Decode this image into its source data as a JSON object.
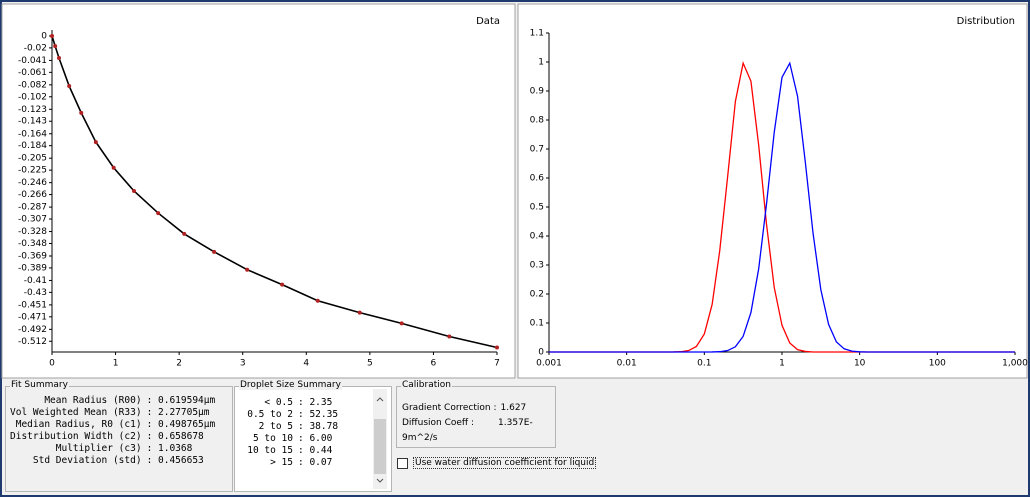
{
  "chart_data": [
    {
      "type": "scatter",
      "title": "Data",
      "x": [
        0,
        0.05,
        0.11,
        0.27,
        0.46,
        0.69,
        0.97,
        1.29,
        1.67,
        2.08,
        2.55,
        3.07,
        3.62,
        4.18,
        4.84,
        5.5,
        6.25,
        7.0
      ],
      "series": [
        {
          "color": "#000000",
          "marker_color": "#b22222",
          "values": [
            0,
            -0.017,
            -0.037,
            -0.084,
            -0.129,
            -0.178,
            -0.221,
            -0.26,
            -0.297,
            -0.332,
            -0.362,
            -0.392,
            -0.417,
            -0.444,
            -0.464,
            -0.482,
            -0.504,
            -0.5225
          ]
        }
      ],
      "xlim": [
        0,
        7
      ],
      "xticks": [
        0,
        1,
        2,
        3,
        4,
        5,
        6,
        7
      ],
      "ylim": [
        -0.53,
        0.01
      ],
      "yticks": [
        0,
        -0.02,
        -0.041,
        -0.061,
        -0.082,
        -0.102,
        -0.123,
        -0.143,
        -0.164,
        -0.184,
        -0.205,
        -0.225,
        -0.246,
        -0.266,
        -0.287,
        -0.307,
        -0.328,
        -0.348,
        -0.369,
        -0.389,
        -0.41,
        -0.43,
        -0.451,
        -0.471,
        -0.492,
        -0.512
      ]
    },
    {
      "type": "line",
      "title": "Distribution",
      "log_x": true,
      "x": [
        0.001,
        0.01,
        0.025,
        0.032,
        0.04,
        0.05,
        0.063,
        0.079,
        0.1,
        0.126,
        0.158,
        0.2,
        0.251,
        0.316,
        0.398,
        0.501,
        0.631,
        0.794,
        1,
        1.259,
        1.585,
        1.995,
        2.512,
        3.162,
        3.981,
        5.012,
        6.31,
        7.943,
        10,
        12.59,
        15.85,
        100,
        1000
      ],
      "series": [
        {
          "color": "#ff0000",
          "values": [
            0,
            0,
            0,
            0,
            0.0002,
            0.001,
            0.005,
            0.019,
            0.062,
            0.164,
            0.35,
            0.607,
            0.864,
            0.996,
            0.934,
            0.713,
            0.442,
            0.223,
            0.092,
            0.031,
            0.008,
            0.002,
            0,
            0,
            0,
            0,
            0,
            0,
            0,
            0,
            0,
            0,
            0
          ]
        },
        {
          "color": "#0000ff",
          "values": [
            0,
            0,
            0,
            0,
            0,
            0,
            0,
            0,
            0,
            0.0002,
            0.001,
            0.005,
            0.018,
            0.054,
            0.136,
            0.287,
            0.509,
            0.757,
            0.947,
            0.996,
            0.882,
            0.655,
            0.409,
            0.215,
            0.095,
            0.035,
            0.011,
            0.003,
            0.0006,
            0,
            0,
            0,
            0
          ]
        }
      ],
      "xlim": [
        0.001,
        1000
      ],
      "xticks": [
        0.001,
        0.01,
        0.1,
        1,
        10,
        100,
        {
          "value": 1000,
          "label": "1,000"
        }
      ],
      "ylim": [
        0,
        1.1
      ],
      "yticks": [
        0,
        0.1,
        0.2,
        0.3,
        0.4,
        0.5,
        0.6,
        0.7,
        0.8,
        0.9,
        1,
        1.1
      ]
    }
  ],
  "fit_summary": {
    "title": "Fit Summary",
    "rows": [
      [
        "Mean Radius (R00)",
        ": 0.619594µm"
      ],
      [
        "Vol Weighted Mean (R33)",
        ": 2.27705µm"
      ],
      [
        "Median Radius, R0 (c1)",
        ": 0.498765µm"
      ],
      [
        "Distribution Width (c2)",
        ": 0.658678"
      ],
      [
        "Multiplier (c3)",
        ": 1.0368"
      ],
      [
        "Std Deviation (std)",
        ": 0.456653"
      ]
    ]
  },
  "droplet_size_summary": {
    "title": "Droplet Size Summary",
    "rows": [
      [
        "< 0.5",
        ": 2.35"
      ],
      [
        "0.5 to 2",
        ": 52.35"
      ],
      [
        "2 to 5",
        ": 38.78"
      ],
      [
        "5 to 10",
        ": 6.00"
      ],
      [
        "10 to 15",
        ": 0.44"
      ],
      [
        "> 15",
        ": 0.07"
      ]
    ]
  },
  "calibration": {
    "title": "Calibration",
    "rows": [
      [
        "Gradient Correction :",
        "1.627"
      ],
      [
        "Diffusion Coeff :",
        "1.357E-9m^2/s"
      ]
    ]
  },
  "checkbox": {
    "label": "Use water diffusion coefficient for liquid",
    "checked": false
  }
}
